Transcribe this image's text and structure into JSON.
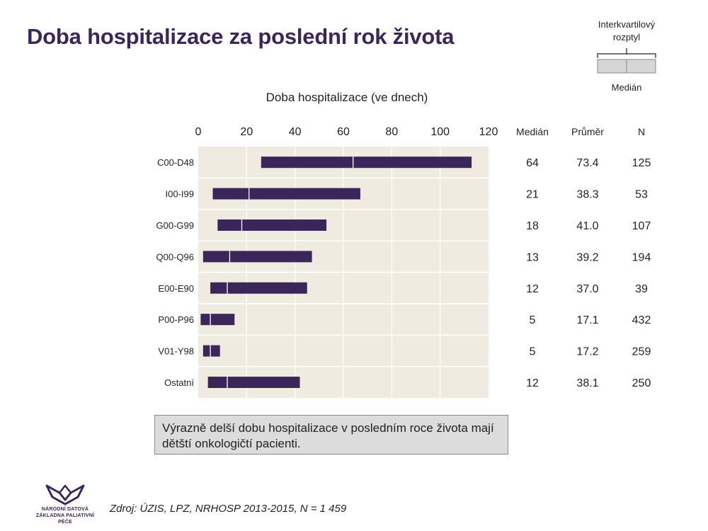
{
  "title": "Doba hospitalizace za poslední rok života",
  "legend": {
    "iqr_label": "Interkvartilový rozptyl",
    "median_label": "Medián"
  },
  "note": "Výrazně delší dobu hospitalizace v posledním roce života mají dětští onkologičtí pacienti.",
  "source": "Zdroj: ÚZIS, LPZ, NRHOSP 2013-2015, N = 1 459",
  "logo": {
    "line1": "NÁRODNÍ DATOVÁ",
    "line2": "ZÁKLADNA PALIATIVNÍ PÉČE"
  },
  "colors": {
    "bar": "#3b2659",
    "plot_bg": "#efebe0",
    "grid": "#ffffff"
  },
  "chart_data": {
    "type": "bar",
    "title": "Doba hospitalizace (ve dnech)",
    "x_ticks": [
      0,
      20,
      40,
      60,
      80,
      100,
      120
    ],
    "xlim": [
      0,
      120
    ],
    "grid": true,
    "categories": [
      "C00-D48",
      "I00-I99",
      "G00-G99",
      "Q00-Q96",
      "E00-E90",
      "P00-P96",
      "V01-Y98",
      "Ostatní"
    ],
    "q1": [
      26,
      6,
      8,
      2,
      5,
      1,
      2,
      4
    ],
    "median": [
      64,
      21,
      18,
      13,
      12,
      5,
      5,
      12
    ],
    "q3": [
      113,
      67,
      53,
      47,
      45,
      15,
      9,
      42
    ],
    "table": {
      "headers": [
        "Medián",
        "Průměr",
        "N"
      ],
      "median": [
        "64",
        "21",
        "18",
        "13",
        "12",
        "5",
        "5",
        "12"
      ],
      "mean": [
        "73.4",
        "38.3",
        "41.0",
        "39.2",
        "37.0",
        "17.1",
        "17.2",
        "38.1"
      ],
      "n": [
        "125",
        "53",
        "107",
        "194",
        "39",
        "432",
        "259",
        "250"
      ]
    }
  }
}
